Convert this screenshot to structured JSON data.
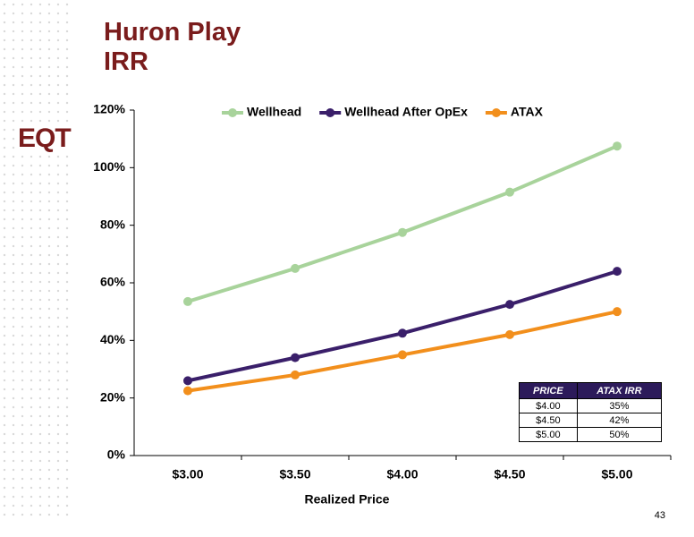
{
  "title": "Huron Play IRR",
  "logo": "EQT",
  "page_number": "43",
  "table": {
    "columns": [
      "PRICE",
      "ATAX IRR"
    ],
    "rows": [
      [
        "$4.00",
        "35%"
      ],
      [
        "$4.50",
        "42%"
      ],
      [
        "$5.00",
        "50%"
      ]
    ]
  },
  "chart_data": {
    "type": "line",
    "x_label": "Realized Price",
    "categories": [
      "$3.00",
      "$3.50",
      "$4.00",
      "$4.50",
      "$5.00"
    ],
    "series": [
      {
        "name": "Wellhead",
        "color": "#a8d39b",
        "values": [
          53.5,
          65,
          77.5,
          91.5,
          107.5
        ]
      },
      {
        "name": "Wellhead After OpEx",
        "color": "#3a1f6a",
        "values": [
          26,
          34,
          42.5,
          52.5,
          64
        ]
      },
      {
        "name": "ATAX",
        "color": "#f28f1c",
        "values": [
          22.5,
          28,
          35,
          42,
          50
        ]
      }
    ],
    "ylim": [
      0,
      120
    ],
    "yticks": [
      {
        "value": 0,
        "label": "0%"
      },
      {
        "value": 20,
        "label": "20%"
      },
      {
        "value": 40,
        "label": "40%"
      },
      {
        "value": 60,
        "label": "60%"
      },
      {
        "value": 80,
        "label": "80%"
      },
      {
        "value": 100,
        "label": "100%"
      },
      {
        "value": 120,
        "label": "120%"
      }
    ],
    "legend": "top"
  }
}
